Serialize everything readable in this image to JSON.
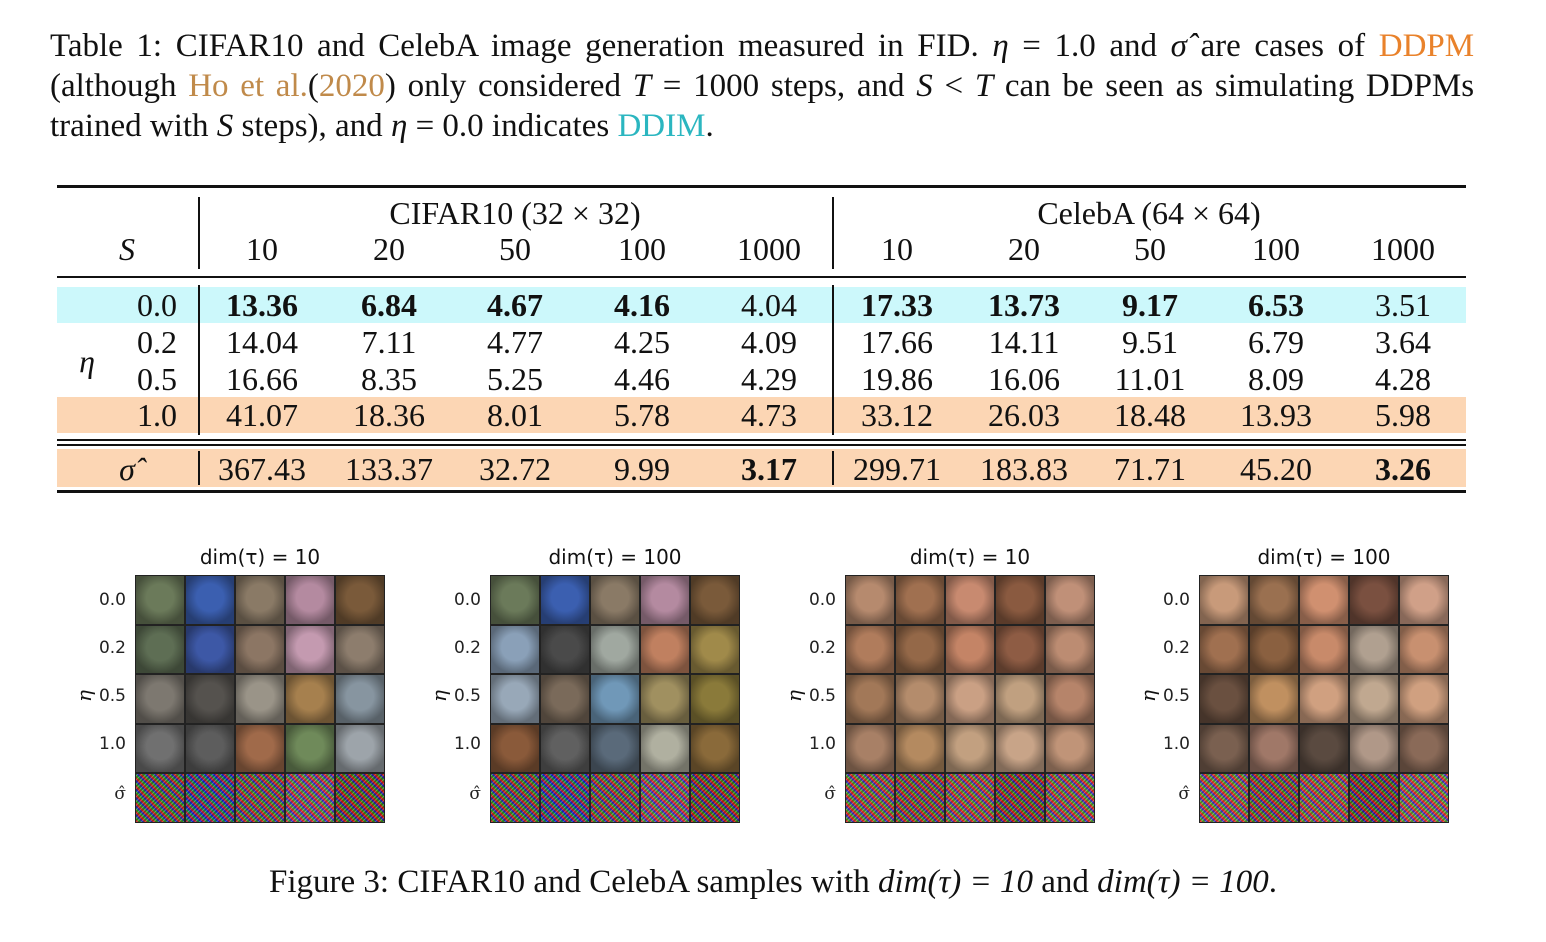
{
  "table_caption": {
    "label": "Table 1:",
    "t1": "CIFAR10 and CelebA image generation measured in FID.",
    "eta_sym": "η",
    "eq1": "= 1.0 and",
    "sigma_sym": "σ̂",
    "t2": "are cases of",
    "ddpm": "DDPM",
    "t3": "(although",
    "ho": "Ho et al.",
    "p_open": "(",
    "year": "2020",
    "p_close": ")",
    "t4": "only considered",
    "T1": "T",
    "t5": "= 1000 steps, and",
    "S1": "S",
    "lt": "<",
    "T2": "T",
    "t6": "can be seen as simulating DDPMs trained with",
    "S2": "S",
    "t7": "steps), and",
    "eta2": "η",
    "t8": "= 0.0 indicates",
    "ddim": "DDIM",
    "period": "."
  },
  "table": {
    "s_label": "S",
    "eta_label": "η",
    "group1": "CIFAR10 (32 × 32)",
    "group2": "CelebA (64 × 64)",
    "steps": [
      "10",
      "20",
      "50",
      "100",
      "1000",
      "10",
      "20",
      "50",
      "100",
      "1000"
    ],
    "rows": [
      {
        "label": "0.0",
        "values": [
          "13.36",
          "6.84",
          "4.67",
          "4.16",
          "4.04",
          "17.33",
          "13.73",
          "9.17",
          "6.53",
          "3.51"
        ],
        "bold": [
          true,
          true,
          true,
          true,
          false,
          true,
          true,
          true,
          true,
          false
        ],
        "highlight": "#ccf8fb"
      },
      {
        "label": "0.2",
        "values": [
          "14.04",
          "7.11",
          "4.77",
          "4.25",
          "4.09",
          "17.66",
          "14.11",
          "9.51",
          "6.79",
          "3.64"
        ],
        "bold": [
          false,
          false,
          false,
          false,
          false,
          false,
          false,
          false,
          false,
          false
        ],
        "highlight": ""
      },
      {
        "label": "0.5",
        "values": [
          "16.66",
          "8.35",
          "5.25",
          "4.46",
          "4.29",
          "19.86",
          "16.06",
          "11.01",
          "8.09",
          "4.28"
        ],
        "bold": [
          false,
          false,
          false,
          false,
          false,
          false,
          false,
          false,
          false,
          false
        ],
        "highlight": ""
      },
      {
        "label": "1.0",
        "values": [
          "41.07",
          "18.36",
          "8.01",
          "5.78",
          "4.73",
          "33.12",
          "26.03",
          "18.48",
          "13.93",
          "5.98"
        ],
        "bold": [
          false,
          false,
          false,
          false,
          false,
          false,
          false,
          false,
          false,
          false
        ],
        "highlight": "#fcd6b4"
      },
      {
        "label": "σ̂",
        "values": [
          "367.43",
          "133.37",
          "32.72",
          "9.99",
          "3.17",
          "299.71",
          "183.83",
          "71.71",
          "45.20",
          "3.26"
        ],
        "bold": [
          false,
          false,
          false,
          false,
          true,
          false,
          false,
          false,
          false,
          true
        ],
        "highlight": "#fcd6b4"
      }
    ]
  },
  "figure": {
    "panels": [
      {
        "title": "dim(τ) = 10",
        "palette": [
          "#6b7a5a",
          "#3b5fb0",
          "#8a7a66",
          "#b48aa0",
          "#7a5a3a",
          "#5e6e54",
          "#3d58a6",
          "#8c7664",
          "#c49ab0",
          "#8d7d6d",
          "#7d7870",
          "#55524e",
          "#9a9488",
          "#a6804e",
          "#8795a0",
          "#707070",
          "#5d5d5d",
          "#a06a4a",
          "#6f8a5a",
          "#9da4aa"
        ]
      },
      {
        "title": "dim(τ) = 100",
        "palette": [
          "#6b7a5a",
          "#3b5fb0",
          "#8a7a66",
          "#b48aa0",
          "#7a5a3a",
          "#8aa0b8",
          "#4a4a4a",
          "#a0a8a0",
          "#c08060",
          "#a08a4a",
          "#98a8b8",
          "#7a6a5a",
          "#7098b8",
          "#a09060",
          "#8a7a3a",
          "#8a5a3a",
          "#606060",
          "#5a6a7a",
          "#b0b0a0",
          "#8a6a3a"
        ]
      },
      {
        "title": "dim(τ) = 10",
        "palette": [
          "#b68a6e",
          "#a07050",
          "#c88a70",
          "#8a5a40",
          "#c09078",
          "#b07c5c",
          "#946848",
          "#c48466",
          "#8e5c44",
          "#bc8c72",
          "#a27858",
          "#b48c6c",
          "#caa084",
          "#c0a080",
          "#b6846a",
          "#a88066",
          "#b48a60",
          "#c2a080",
          "#c8a488",
          "#c09478"
        ]
      },
      {
        "title": "dim(τ) = 100",
        "palette": [
          "#c89a7a",
          "#9a7050",
          "#d09070",
          "#7a5040",
          "#d0a088",
          "#a07050",
          "#8a6040",
          "#c88a6a",
          "#b0a090",
          "#c89070",
          "#6a5040",
          "#c09060",
          "#d0a080",
          "#c0a890",
          "#d0a080",
          "#7a6050",
          "#a07868",
          "#5a4a40",
          "#b09888",
          "#8a6a58"
        ]
      }
    ],
    "y_ticks": [
      "0.0",
      "0.2",
      "0.5",
      "1.0",
      "σ̂"
    ],
    "y_label": "η",
    "caption": {
      "label": "Figure 3:",
      "t1": "CIFAR10 and CelebA samples with",
      "dim1": "dim(τ) = 10",
      "and": "and",
      "dim2": "dim(τ) = 100",
      "period": "."
    }
  }
}
